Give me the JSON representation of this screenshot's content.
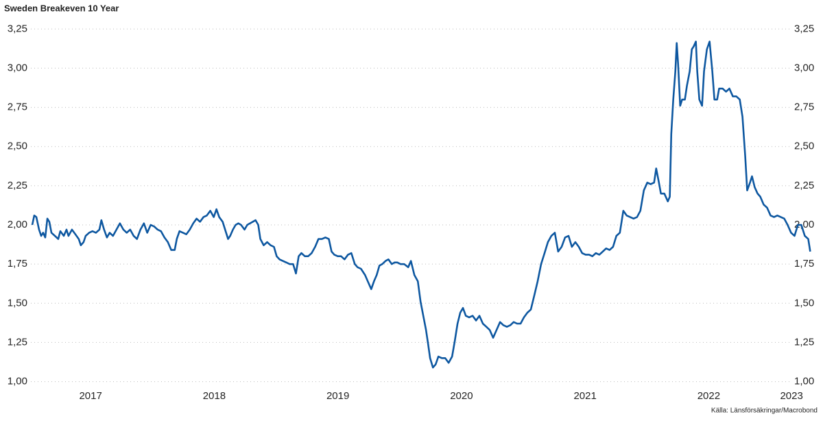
{
  "chart_data": {
    "type": "line",
    "title": "Sweden Breakeven 10 Year",
    "source": "Källa: Länsförsäkringar/Macrobond",
    "x": [
      2017.028,
      2017.044,
      2017.061,
      2017.083,
      2017.1,
      2017.116,
      2017.133,
      2017.15,
      2017.166,
      2017.183,
      2017.211,
      2017.238,
      2017.255,
      2017.283,
      2017.305,
      2017.321,
      2017.349,
      2017.377,
      2017.404,
      2017.421,
      2017.443,
      2017.46,
      2017.488,
      2017.515,
      2017.543,
      2017.571,
      2017.587,
      2017.609,
      2017.632,
      2017.654,
      2017.681,
      2017.709,
      2017.737,
      2017.765,
      2017.792,
      2017.82,
      2017.848,
      2017.875,
      2017.903,
      2017.931,
      2017.958,
      2017.986,
      2018.014,
      2018.042,
      2018.069,
      2018.097,
      2018.125,
      2018.152,
      2018.18,
      2018.197,
      2018.219,
      2018.247,
      2018.274,
      2018.302,
      2018.33,
      2018.357,
      2018.385,
      2018.413,
      2018.44,
      2018.468,
      2018.496,
      2018.518,
      2018.54,
      2018.568,
      2018.596,
      2018.612,
      2018.629,
      2018.651,
      2018.673,
      2018.695,
      2018.717,
      2018.745,
      2018.767,
      2018.789,
      2018.812,
      2018.834,
      2018.856,
      2018.873,
      2018.9,
      2018.928,
      2018.956,
      2018.983,
      2019.005,
      2019.028,
      2019.055,
      2019.083,
      2019.111,
      2019.138,
      2019.161,
      2019.183,
      2019.205,
      2019.233,
      2019.26,
      2019.288,
      2019.316,
      2019.343,
      2019.371,
      2019.399,
      2019.427,
      2019.449,
      2019.471,
      2019.499,
      2019.526,
      2019.554,
      2019.582,
      2019.609,
      2019.637,
      2019.659,
      2019.687,
      2019.72,
      2019.742,
      2019.77,
      2019.792,
      2019.814,
      2019.836,
      2019.859,
      2019.886,
      2019.909,
      2019.936,
      2019.958,
      2019.981,
      2020.008,
      2020.036,
      2020.069,
      2020.091,
      2020.119,
      2020.147,
      2020.169,
      2020.191,
      2020.213,
      2020.23,
      2020.246,
      2020.269,
      2020.291,
      2020.313,
      2020.341,
      2020.368,
      2020.396,
      2020.424,
      2020.446,
      2020.468,
      2020.49,
      2020.512,
      2020.535,
      2020.562,
      2020.59,
      2020.618,
      2020.645,
      2020.673,
      2020.701,
      2020.728,
      2020.756,
      2020.784,
      2020.812,
      2020.839,
      2020.867,
      2020.895,
      2020.922,
      2020.95,
      2020.978,
      2021.005,
      2021.033,
      2021.061,
      2021.089,
      2021.116,
      2021.144,
      2021.172,
      2021.199,
      2021.227,
      2021.255,
      2021.282,
      2021.31,
      2021.338,
      2021.366,
      2021.393,
      2021.421,
      2021.449,
      2021.476,
      2021.504,
      2021.532,
      2021.559,
      2021.587,
      2021.615,
      2021.643,
      2021.67,
      2021.698,
      2021.726,
      2021.753,
      2021.781,
      2021.809,
      2021.836,
      2021.864,
      2021.892,
      2021.92,
      2021.947,
      2021.975,
      2022.003,
      2022.03,
      2022.058,
      2022.075,
      2022.097,
      2022.113,
      2022.141,
      2022.169,
      2022.185,
      2022.197,
      2022.213,
      2022.23,
      2022.241,
      2022.252,
      2022.269,
      2022.285,
      2022.307,
      2022.324,
      2022.346,
      2022.363,
      2022.379,
      2022.396,
      2022.407,
      2022.424,
      2022.446,
      2022.462,
      2022.485,
      2022.507,
      2022.529,
      2022.546,
      2022.568,
      2022.584,
      2022.612,
      2022.64,
      2022.667,
      2022.695,
      2022.723,
      2022.751,
      2022.773,
      2022.795,
      2022.811,
      2022.834,
      2022.85,
      2022.872,
      2022.895,
      2022.917,
      2022.944,
      2022.972,
      2023.0,
      2023.028,
      2023.055,
      2023.083,
      2023.111,
      2023.138,
      2023.166,
      2023.194,
      2023.221,
      2023.249,
      2023.277,
      2023.305,
      2023.321
    ],
    "series": [
      {
        "name": "Sweden Breakeven 10 Year",
        "color": "#0d57a0",
        "values": [
          2.0,
          2.06,
          2.05,
          1.97,
          1.93,
          1.95,
          1.92,
          2.04,
          2.02,
          1.95,
          1.93,
          1.91,
          1.96,
          1.93,
          1.97,
          1.93,
          1.97,
          1.94,
          1.91,
          1.87,
          1.89,
          1.93,
          1.95,
          1.96,
          1.95,
          1.97,
          2.03,
          1.97,
          1.92,
          1.95,
          1.93,
          1.97,
          2.01,
          1.97,
          1.95,
          1.97,
          1.93,
          1.91,
          1.97,
          2.01,
          1.95,
          2.0,
          1.99,
          1.97,
          1.96,
          1.92,
          1.89,
          1.84,
          1.84,
          1.91,
          1.96,
          1.95,
          1.94,
          1.97,
          2.01,
          2.04,
          2.02,
          2.05,
          2.06,
          2.09,
          2.05,
          2.1,
          2.05,
          2.02,
          1.95,
          1.91,
          1.93,
          1.97,
          2.0,
          2.01,
          2.0,
          1.97,
          2.0,
          2.01,
          2.02,
          2.03,
          2.0,
          1.91,
          1.87,
          1.89,
          1.87,
          1.86,
          1.8,
          1.78,
          1.77,
          1.76,
          1.75,
          1.75,
          1.69,
          1.8,
          1.82,
          1.8,
          1.8,
          1.82,
          1.86,
          1.91,
          1.91,
          1.92,
          1.91,
          1.83,
          1.81,
          1.8,
          1.8,
          1.78,
          1.81,
          1.82,
          1.75,
          1.73,
          1.72,
          1.68,
          1.64,
          1.59,
          1.64,
          1.68,
          1.74,
          1.75,
          1.77,
          1.78,
          1.75,
          1.76,
          1.76,
          1.75,
          1.75,
          1.73,
          1.77,
          1.68,
          1.64,
          1.51,
          1.42,
          1.33,
          1.24,
          1.15,
          1.09,
          1.11,
          1.16,
          1.15,
          1.15,
          1.12,
          1.16,
          1.26,
          1.37,
          1.44,
          1.47,
          1.42,
          1.41,
          1.42,
          1.39,
          1.42,
          1.37,
          1.35,
          1.33,
          1.28,
          1.33,
          1.38,
          1.36,
          1.35,
          1.36,
          1.38,
          1.37,
          1.37,
          1.41,
          1.44,
          1.46,
          1.55,
          1.64,
          1.75,
          1.82,
          1.89,
          1.93,
          1.95,
          1.83,
          1.86,
          1.92,
          1.93,
          1.86,
          1.89,
          1.86,
          1.82,
          1.81,
          1.81,
          1.8,
          1.82,
          1.81,
          1.83,
          1.85,
          1.84,
          1.86,
          1.93,
          1.95,
          2.09,
          2.06,
          2.05,
          2.04,
          2.05,
          2.09,
          2.22,
          2.27,
          2.26,
          2.27,
          2.36,
          2.27,
          2.2,
          2.2,
          2.15,
          2.18,
          2.58,
          2.8,
          2.98,
          3.16,
          3.03,
          2.76,
          2.8,
          2.8,
          2.89,
          2.98,
          3.12,
          3.14,
          3.17,
          2.98,
          2.8,
          2.76,
          2.98,
          3.12,
          3.17,
          2.98,
          2.8,
          2.8,
          2.87,
          2.87,
          2.85,
          2.87,
          2.82,
          2.82,
          2.8,
          2.69,
          2.44,
          2.22,
          2.27,
          2.31,
          2.24,
          2.2,
          2.18,
          2.13,
          2.11,
          2.06,
          2.05,
          2.06,
          2.05,
          2.04,
          2.0,
          1.95,
          1.93,
          2.0,
          2.0,
          1.93,
          1.91,
          1.83
        ]
      }
    ],
    "xlim": [
      2017,
      2023.33
    ],
    "xticks": [
      {
        "value": 2017.5,
        "label": "2017"
      },
      {
        "value": 2018.5,
        "label": "2018"
      },
      {
        "value": 2019.5,
        "label": "2019"
      },
      {
        "value": 2020.5,
        "label": "2020"
      },
      {
        "value": 2021.5,
        "label": "2021"
      },
      {
        "value": 2022.5,
        "label": "2022"
      },
      {
        "value": 2023.17,
        "label": "2023"
      }
    ],
    "ylim": [
      0.985,
      3.33
    ],
    "yticks": [
      {
        "value": 1.0,
        "label": "1,00"
      },
      {
        "value": 1.25,
        "label": "1,25"
      },
      {
        "value": 1.5,
        "label": "1,50"
      },
      {
        "value": 1.75,
        "label": "1,75"
      },
      {
        "value": 2.0,
        "label": "2,00"
      },
      {
        "value": 2.25,
        "label": "2,25"
      },
      {
        "value": 2.5,
        "label": "2,50"
      },
      {
        "value": 2.75,
        "label": "2,75"
      },
      {
        "value": 3.0,
        "label": "3,00"
      },
      {
        "value": 3.25,
        "label": "3,25"
      }
    ],
    "y2lim": [
      0.985,
      3.33
    ],
    "y2ticks": [
      {
        "value": 1.0,
        "label": "1,00"
      },
      {
        "value": 1.25,
        "label": "1,25"
      },
      {
        "value": 1.5,
        "label": "1,50"
      },
      {
        "value": 1.75,
        "label": "1,75"
      },
      {
        "value": 2.0,
        "label": "2,00"
      },
      {
        "value": 2.25,
        "label": "2,25"
      },
      {
        "value": 2.5,
        "label": "2,50"
      },
      {
        "value": 2.75,
        "label": "2,75"
      },
      {
        "value": 3.0,
        "label": "3,00"
      },
      {
        "value": 3.25,
        "label": "3,25"
      }
    ],
    "grid": true
  }
}
